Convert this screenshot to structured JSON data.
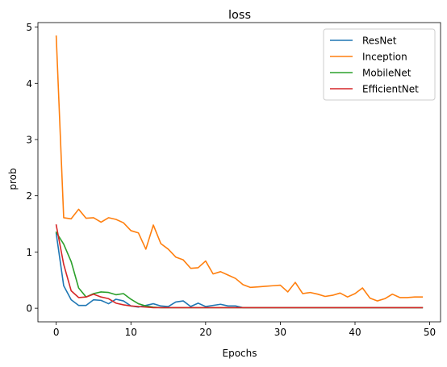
{
  "chart_data": {
    "type": "line",
    "title": "loss",
    "xlabel": "Epochs",
    "ylabel": "prob",
    "xlim": [
      -2.45,
      51.45
    ],
    "ylim": [
      -0.242,
      5.08
    ],
    "xticks": [
      0,
      10,
      20,
      30,
      40,
      50
    ],
    "yticks": [
      0,
      1,
      2,
      3,
      4,
      5
    ],
    "grid": false,
    "legend_position": "top-right",
    "x": [
      0,
      1,
      2,
      3,
      4,
      5,
      6,
      7,
      8,
      9,
      10,
      11,
      12,
      13,
      14,
      15,
      16,
      17,
      18,
      19,
      20,
      21,
      22,
      23,
      24,
      25,
      26,
      27,
      28,
      29,
      30,
      31,
      32,
      33,
      34,
      35,
      36,
      37,
      38,
      39,
      40,
      41,
      42,
      43,
      44,
      45,
      46,
      47,
      48,
      49
    ],
    "series": [
      {
        "name": "ResNet",
        "color": "#1f77b4",
        "values": [
          1.33,
          0.4,
          0.15,
          0.05,
          0.05,
          0.15,
          0.14,
          0.08,
          0.16,
          0.13,
          0.04,
          0.02,
          0.05,
          0.08,
          0.04,
          0.03,
          0.11,
          0.13,
          0.03,
          0.09,
          0.03,
          0.05,
          0.07,
          0.04,
          0.04,
          0.01,
          0.01,
          0.01,
          0.01,
          0.01,
          0.01,
          0.01,
          0.01,
          0.01,
          0.01,
          0.01,
          0.01,
          0.01,
          0.01,
          0.01,
          0.01,
          0.01,
          0.01,
          0.01,
          0.01,
          0.01,
          0.01,
          0.01,
          0.01,
          0.01
        ]
      },
      {
        "name": "Inception",
        "color": "#ff7f0e",
        "values": [
          4.84,
          1.61,
          1.59,
          1.76,
          1.6,
          1.61,
          1.53,
          1.61,
          1.58,
          1.52,
          1.38,
          1.34,
          1.05,
          1.48,
          1.15,
          1.05,
          0.91,
          0.86,
          0.71,
          0.72,
          0.84,
          0.61,
          0.65,
          0.59,
          0.53,
          0.42,
          0.37,
          0.38,
          0.39,
          0.4,
          0.41,
          0.29,
          0.46,
          0.26,
          0.28,
          0.25,
          0.21,
          0.23,
          0.27,
          0.2,
          0.26,
          0.36,
          0.18,
          0.13,
          0.17,
          0.25,
          0.19,
          0.19,
          0.2,
          0.2
        ]
      },
      {
        "name": "MobileNet",
        "color": "#2ca02c",
        "values": [
          1.35,
          1.14,
          0.83,
          0.36,
          0.2,
          0.26,
          0.29,
          0.28,
          0.24,
          0.26,
          0.16,
          0.08,
          0.04,
          0.02,
          0.01,
          0.01,
          0.01,
          0.01,
          0.01,
          0.01,
          0.01,
          0.01,
          0.01,
          0.01,
          0.01,
          0.01,
          0.01,
          0.01,
          0.01,
          0.01,
          0.01,
          0.01,
          0.01,
          0.01,
          0.01,
          0.01,
          0.01,
          0.01,
          0.01,
          0.01,
          0.01,
          0.01,
          0.01,
          0.01,
          0.01,
          0.01,
          0.01,
          0.01,
          0.01,
          0.01
        ]
      },
      {
        "name": "EfficientNet",
        "color": "#d62728",
        "values": [
          1.48,
          0.78,
          0.31,
          0.19,
          0.2,
          0.25,
          0.2,
          0.17,
          0.09,
          0.06,
          0.04,
          0.03,
          0.02,
          0.01,
          0.01,
          0.01,
          0.01,
          0.01,
          0.01,
          0.01,
          0.01,
          0.01,
          0.01,
          0.01,
          0.01,
          0.01,
          0.01,
          0.01,
          0.01,
          0.01,
          0.01,
          0.01,
          0.01,
          0.01,
          0.01,
          0.01,
          0.01,
          0.01,
          0.01,
          0.01,
          0.01,
          0.01,
          0.01,
          0.01,
          0.01,
          0.01,
          0.01,
          0.01,
          0.01,
          0.01
        ]
      }
    ]
  }
}
